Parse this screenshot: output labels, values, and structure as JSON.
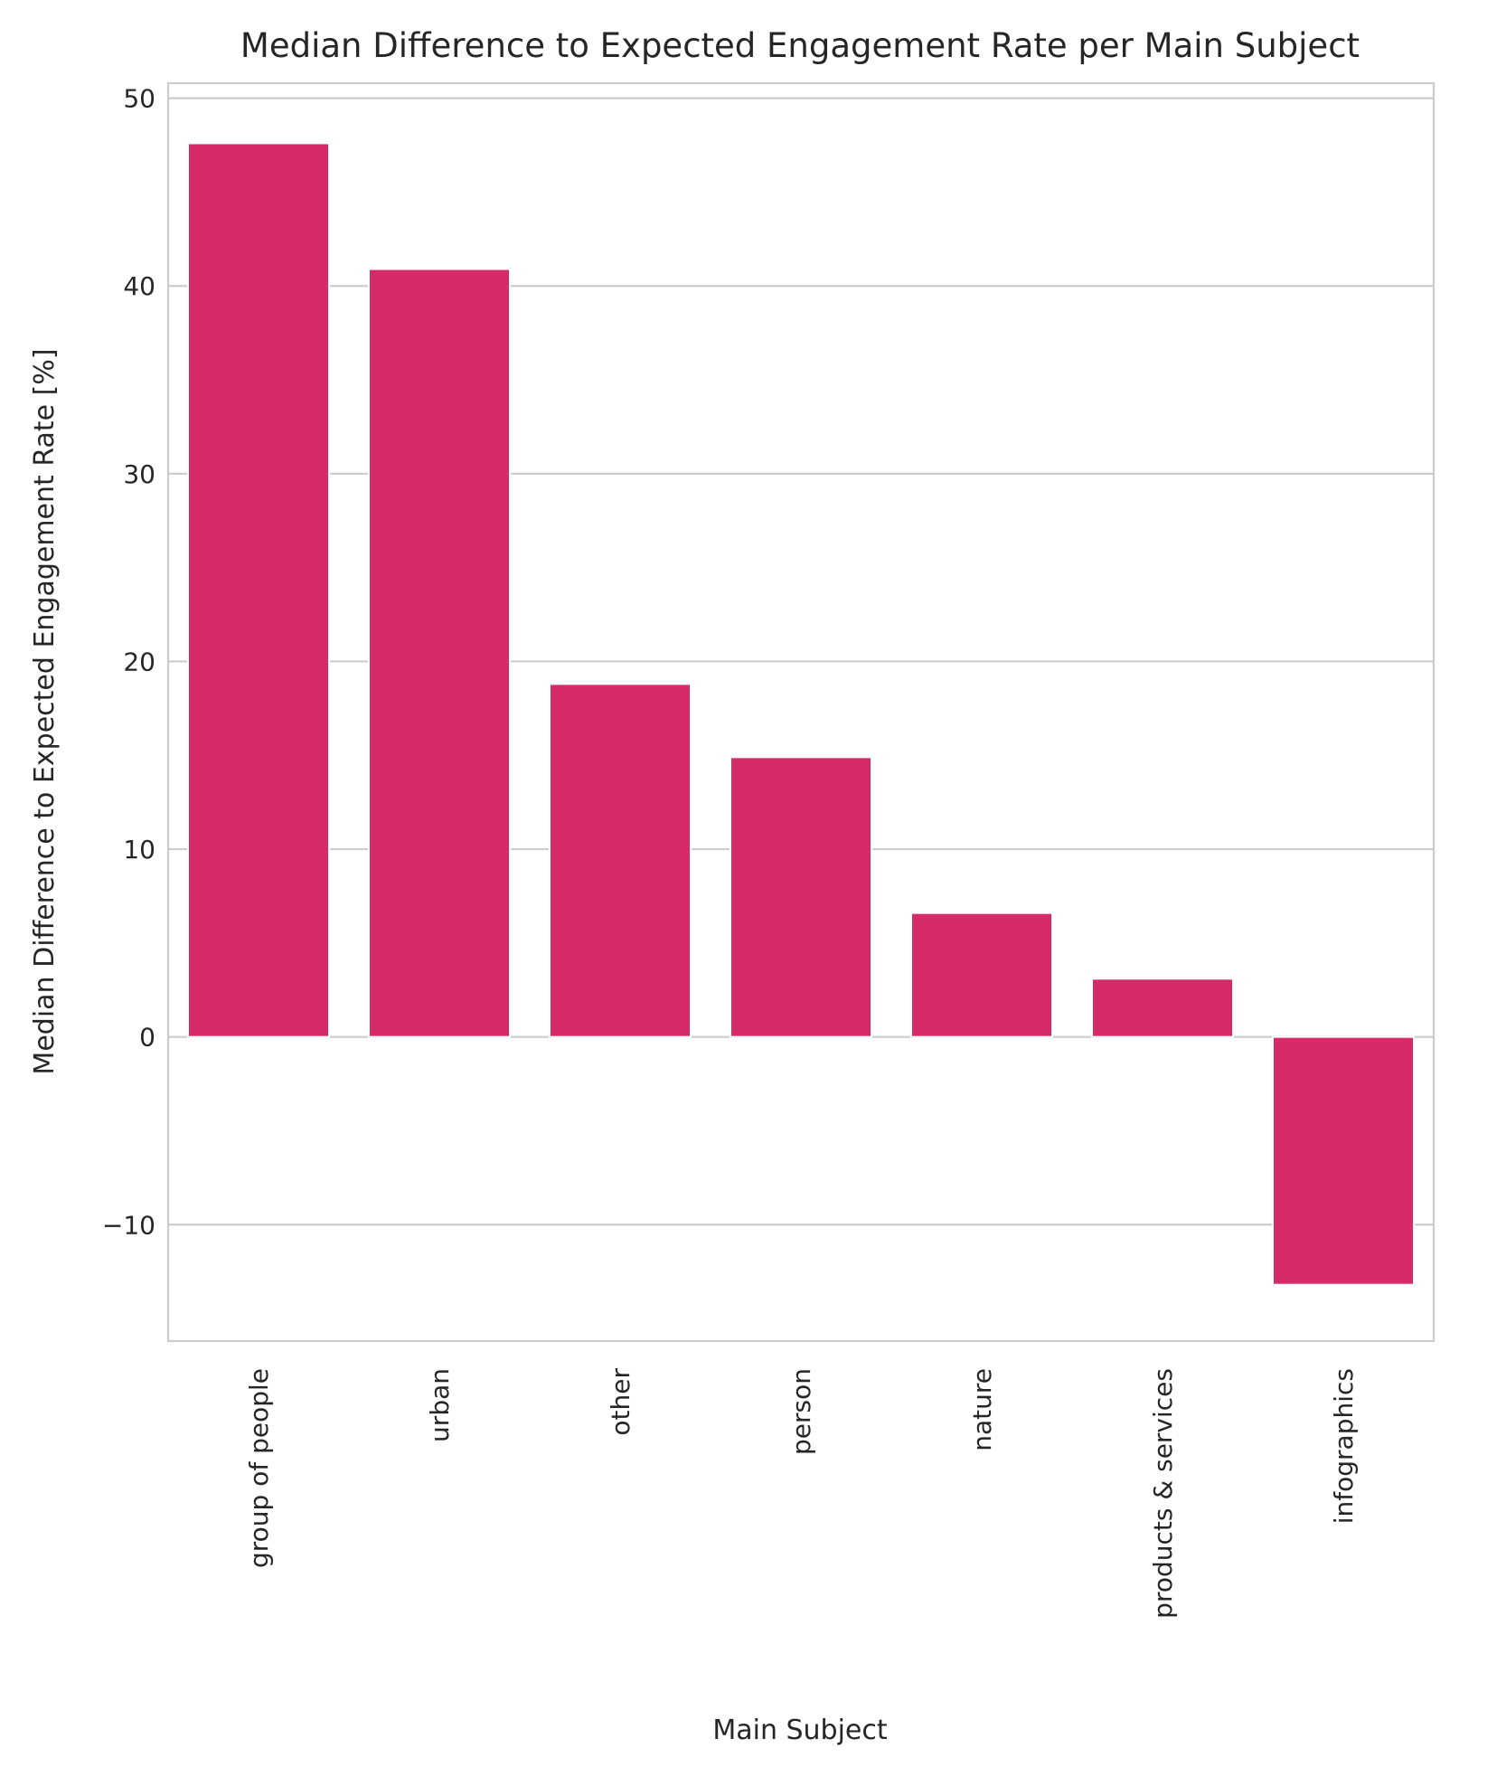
{
  "chart_data": {
    "type": "bar",
    "title": "Median Difference to Expected Engagement Rate per Main Subject",
    "xlabel": "Main Subject",
    "ylabel": "Median Difference to Expected Engagement Rate [%]",
    "categories": [
      "group of people",
      "urban",
      "other",
      "person",
      "nature",
      "products & services",
      "infographics"
    ],
    "values": [
      47.6,
      40.9,
      18.8,
      14.9,
      6.6,
      3.1,
      -13.2
    ],
    "ylim": [
      -16.2,
      50.8
    ],
    "yticks": [
      -10,
      0,
      10,
      20,
      30,
      40,
      50
    ],
    "ytick_labels": [
      "−10",
      "0",
      "10",
      "20",
      "30",
      "40",
      "50"
    ],
    "grid": true,
    "legend": "none",
    "bar_color": "#d62b68"
  }
}
